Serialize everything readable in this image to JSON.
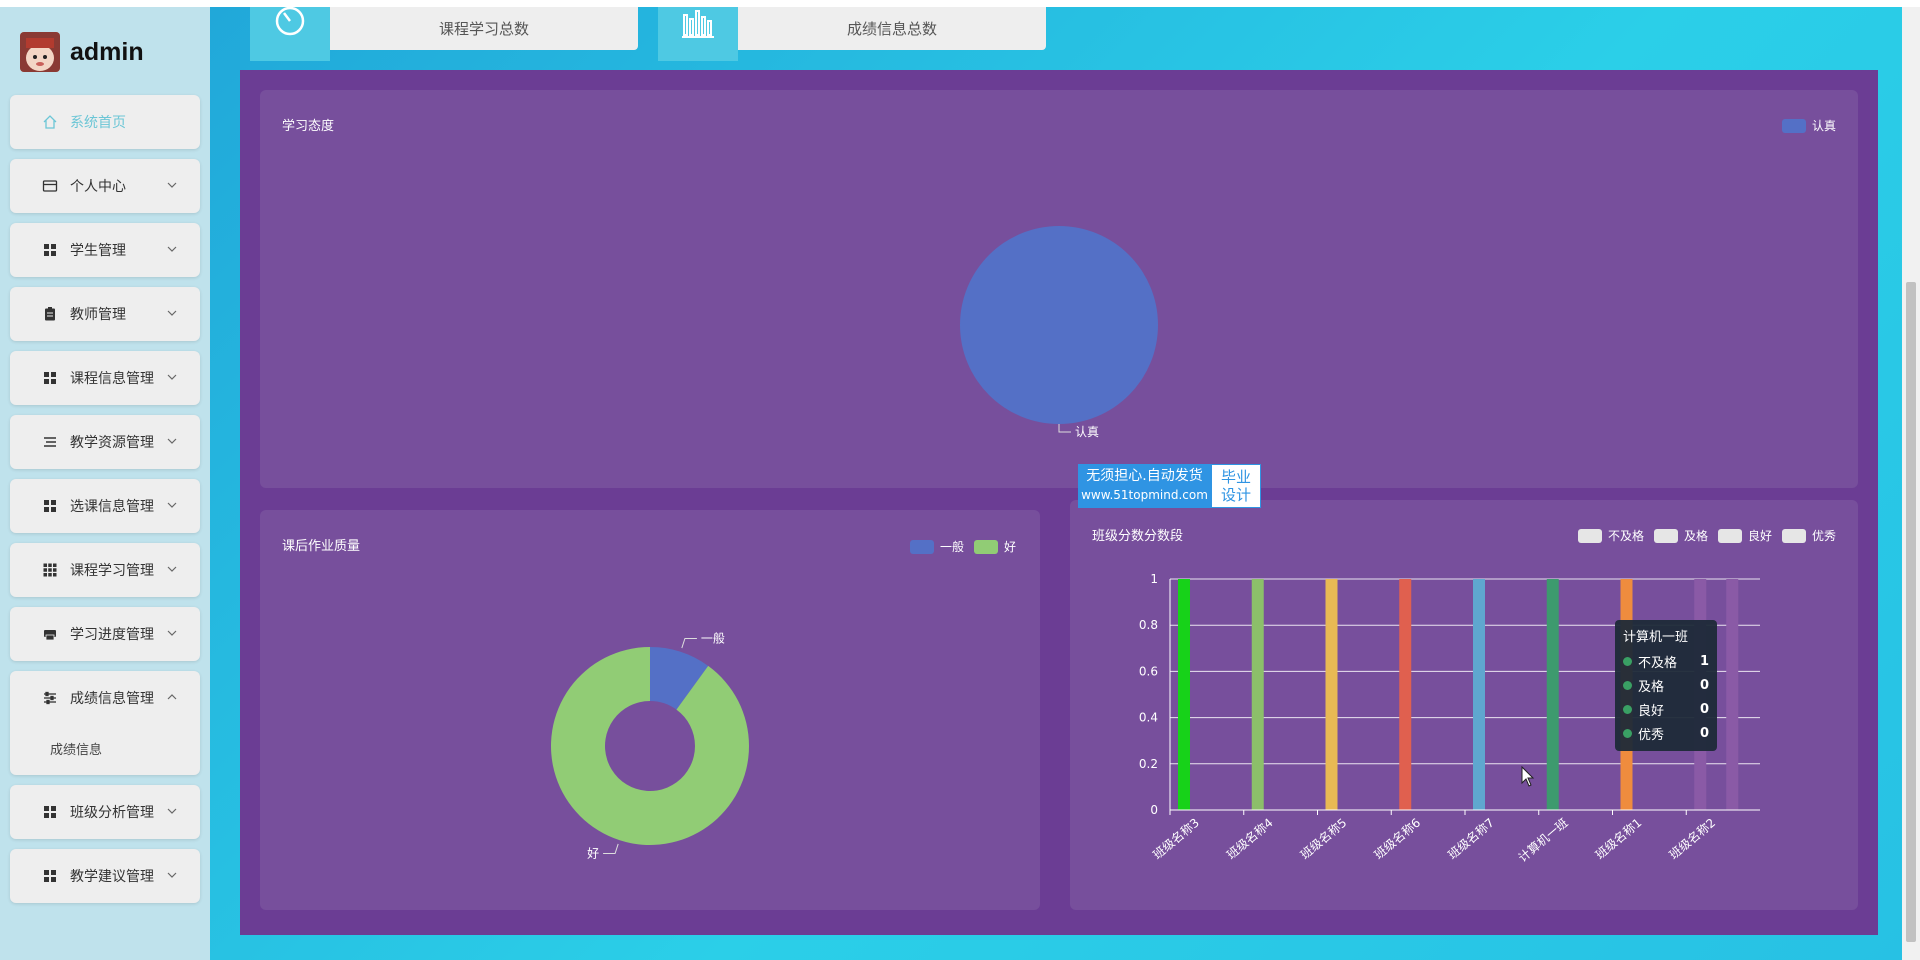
{
  "brand": {
    "name": "admin"
  },
  "sidebar": {
    "items": [
      {
        "label": "系统首页",
        "icon": "home-icon",
        "active": true,
        "expandable": false
      },
      {
        "label": "个人中心",
        "icon": "card-icon",
        "expandable": true
      },
      {
        "label": "学生管理",
        "icon": "grid-icon",
        "expandable": true
      },
      {
        "label": "教师管理",
        "icon": "clipboard-icon",
        "expandable": true
      },
      {
        "label": "课程信息管理",
        "icon": "grid-icon",
        "expandable": true
      },
      {
        "label": "教学资源管理",
        "icon": "list-icon",
        "expandable": true
      },
      {
        "label": "选课信息管理",
        "icon": "grid-icon",
        "expandable": true
      },
      {
        "label": "课程学习管理",
        "icon": "grid9-icon",
        "expandable": true
      },
      {
        "label": "学习进度管理",
        "icon": "printer-icon",
        "expandable": true
      },
      {
        "label": "成绩信息管理",
        "icon": "sliders-icon",
        "expandable": true,
        "open": true,
        "sub": [
          "成绩信息"
        ]
      },
      {
        "label": "班级分析管理",
        "icon": "grid-icon",
        "expandable": true
      },
      {
        "label": "教学建议管理",
        "icon": "grid-icon",
        "expandable": true
      }
    ]
  },
  "stats": [
    {
      "label": "课程学习总数",
      "icon": "clock-icon"
    },
    {
      "label": "成绩信息总数",
      "icon": "bar-chart-icon"
    }
  ],
  "colors": {
    "sidebar_bg": "#bfe2ec",
    "panel_bg": "#774f9c",
    "panel_wrap": "#6b3d94",
    "accent": "#6cc6d6"
  },
  "chart_data": [
    {
      "type": "pie",
      "title": "学习态度",
      "slices": [
        {
          "name": "认真",
          "value": 1,
          "color": "#5470c6"
        }
      ],
      "legend": [
        "认真"
      ],
      "legend_position": "top-right"
    },
    {
      "type": "pie",
      "title": "课后作业质量",
      "donut": true,
      "slices": [
        {
          "name": "一般",
          "value": 1,
          "color": "#5470c6"
        },
        {
          "name": "好",
          "value": 9,
          "color": "#91cc75"
        }
      ],
      "legend": [
        "一般",
        "好"
      ],
      "legend_position": "top-right"
    },
    {
      "type": "bar",
      "title": "班级分数分数段",
      "categories": [
        "班级名称3",
        "班级名称4",
        "班级名称5",
        "班级名称6",
        "班级名称7",
        "计算机一班",
        "班级名称1",
        "班级名称2"
      ],
      "series": [
        {
          "name": "不及格",
          "values": [
            1,
            1,
            1,
            1,
            1,
            1,
            1,
            1
          ]
        },
        {
          "name": "及格",
          "values": [
            0,
            0,
            0,
            0,
            0,
            0,
            0,
            1
          ]
        },
        {
          "name": "良好",
          "values": [
            0,
            0,
            0,
            0,
            0,
            0,
            0,
            0
          ]
        },
        {
          "name": "优秀",
          "values": [
            0,
            0,
            0,
            0,
            0,
            0,
            0,
            0
          ]
        }
      ],
      "bar_colors": [
        "#17d219",
        "#8cbf6a",
        "#e8b954",
        "#e0604f",
        "#5fa7cf",
        "#3d9a6e",
        "#ef8c3e",
        "#8a5aa6"
      ],
      "ylim": [
        0,
        1
      ],
      "yticks": [
        "0",
        "0.2",
        "0.4",
        "0.6",
        "0.8",
        "1"
      ],
      "legend": [
        "不及格",
        "及格",
        "良好",
        "优秀"
      ],
      "legend_position": "top-right",
      "grid": true,
      "tooltip": {
        "title": "计算机一班",
        "rows": [
          {
            "name": "不及格",
            "value": "1"
          },
          {
            "name": "及格",
            "value": "0"
          },
          {
            "name": "良好",
            "value": "0"
          },
          {
            "name": "优秀",
            "value": "0"
          }
        ]
      }
    }
  ],
  "watermark": {
    "line1": "无须担心.自动发货",
    "line2": "www.51topmind.com",
    "right1": "毕业",
    "right2": "设计"
  }
}
